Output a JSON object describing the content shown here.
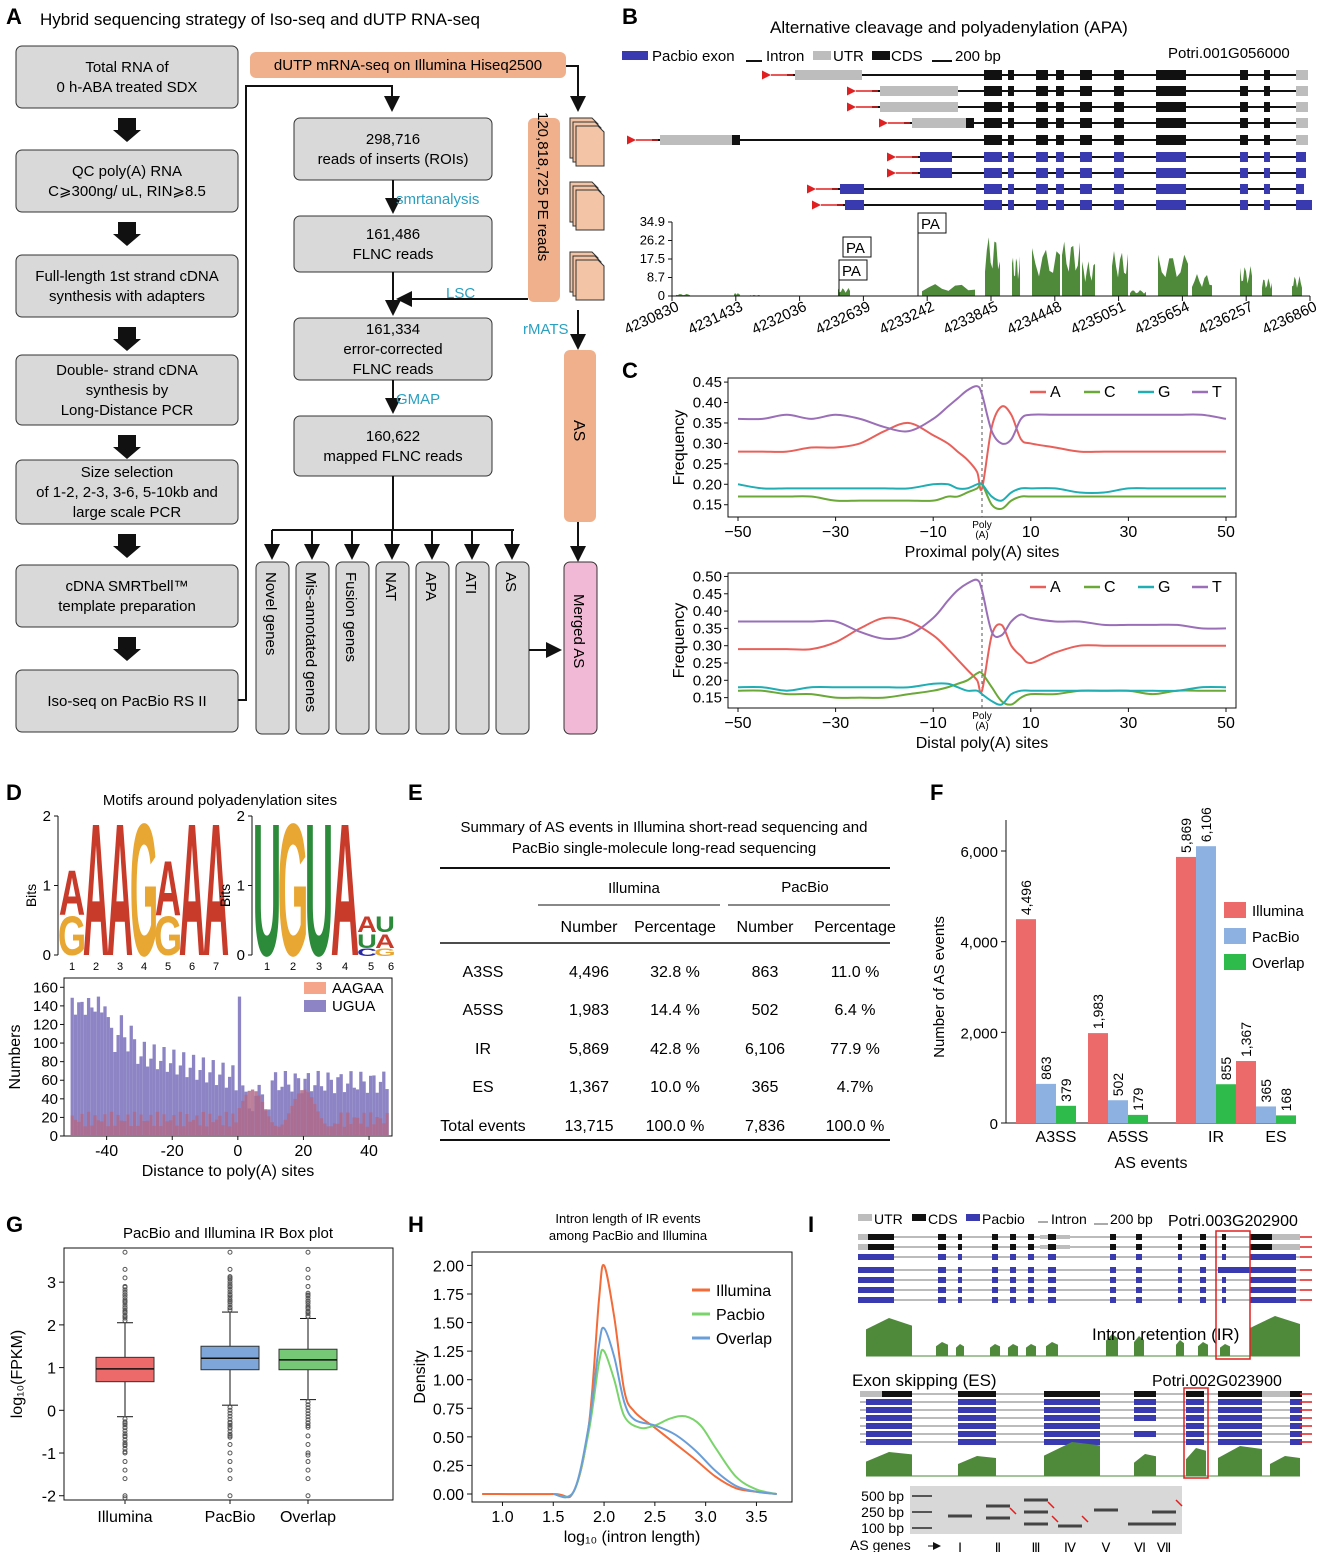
{
  "panels": {
    "A": "A",
    "B": "B",
    "C": "C",
    "D": "D",
    "E": "E",
    "F": "F",
    "G": "G",
    "H": "H",
    "I": "I"
  },
  "A": {
    "title": "Hybrid sequencing strategy of Iso-seq and dUTP RNA-seq",
    "left_steps": [
      [
        "Total RNA of",
        "0 h-ABA treated SDX"
      ],
      [
        "QC poly(A) RNA",
        "C⩾300ng/ uL,  RIN⩾8.5"
      ],
      [
        "Full-length 1st strand cDNA",
        "synthesis with adapters"
      ],
      [
        "Double- strand cDNA",
        "synthesis by",
        "Long-Distance PCR"
      ],
      [
        "Size selection",
        "of 1-2, 2-3, 3-6, 5-10kb and",
        "large scale PCR"
      ],
      [
        "cDNA SMRTbell™",
        "template preparation"
      ],
      [
        "Iso-seq on PacBio RS II"
      ]
    ],
    "dutp": "dUTP mRNA-seq on Illumina Hiseq2500",
    "mid_steps": [
      [
        "298,716",
        "reads of inserts (ROIs)"
      ],
      [
        "161,486",
        "FLNC reads"
      ],
      [
        "161,334",
        "error-corrected",
        "FLNC reads"
      ],
      [
        "160,622",
        "mapped FLNC reads"
      ]
    ],
    "tools": [
      "smrtanalysis",
      "LSC",
      "GMAP",
      "rMATS"
    ],
    "pe_reads": "120,818,725 PE reads",
    "as": "AS",
    "outputs": [
      "Novel genes",
      "Mis-annotated genes",
      "Fusion genes",
      "NAT",
      "APA",
      "ATI",
      "AS"
    ],
    "merged": "Merged AS"
  },
  "B": {
    "title": "Alternative cleavage and polyadenylation (APA)",
    "legend": [
      "Pacbio exon",
      "Intron",
      "UTR",
      "CDS",
      "200 bp"
    ],
    "gene": "Potri.001G056000",
    "yticks": [
      "34.9",
      "26.2",
      "17.5",
      "8.7",
      "0"
    ],
    "xticks": [
      "4230830",
      "4231433",
      "4232036",
      "4232639",
      "4233242",
      "4233845",
      "4234448",
      "4235051",
      "4235654",
      "4236257",
      "4236860"
    ],
    "pa": [
      "PA",
      "PA",
      "PA"
    ]
  },
  "C": {
    "ylabel": "Frequency",
    "xticks": [
      "−50",
      "−30",
      "−10",
      "10",
      "30",
      "50"
    ],
    "poly": [
      "Poly",
      "(A)"
    ],
    "top": {
      "xlabel": "Proximal poly(A) sites",
      "yticks": [
        "0.45",
        "0.40",
        "0.35",
        "0.30",
        "0.25",
        "0.20",
        "0.15"
      ]
    },
    "bottom": {
      "xlabel": "Distal poly(A) sites",
      "yticks": [
        "0.50",
        "0.45",
        "0.40",
        "0.35",
        "0.30",
        "0.25",
        "0.20",
        "0.15"
      ]
    },
    "legend": [
      "A",
      "C",
      "G",
      "T"
    ]
  },
  "D": {
    "title": "Motifs around polyadenylation sites",
    "bits": "Bits",
    "yt": [
      "2",
      "1",
      "0"
    ],
    "pos1": [
      "1",
      "2",
      "3",
      "4",
      "5",
      "6",
      "7"
    ],
    "pos2": [
      "1",
      "2",
      "3",
      "4",
      "5",
      "6"
    ],
    "ylabel": "Numbers",
    "xlabel": "Distance to poly(A) sites",
    "yticks": [
      "160",
      "140",
      "120",
      "100",
      "80",
      "60",
      "40",
      "20",
      "0"
    ],
    "xticks": [
      "-40",
      "-20",
      "0",
      "20",
      "40"
    ],
    "legend": [
      "AAGAA",
      "UGUA"
    ]
  },
  "E": {
    "title": [
      "Summary of AS events in Illumina short-read sequencing and",
      "PacBio single-molecule long-read sequencing"
    ],
    "groups": [
      "Illumina",
      "PacBio"
    ],
    "cols": [
      "Number",
      "Percentage",
      "Number",
      "Percentage"
    ],
    "rows": [
      [
        "A3SS",
        "4,496",
        "32.8 %",
        "863",
        "11.0 %"
      ],
      [
        "A5SS",
        "1,983",
        "14.4 %",
        "502",
        "6.4 %"
      ],
      [
        "IR",
        "5,869",
        "42.8 %",
        "6,106",
        "77.9 %"
      ],
      [
        "ES",
        "1,367",
        "10.0 %",
        "365",
        "4.7%"
      ],
      [
        "Total events",
        "13,715",
        "100.0 %",
        "7,836",
        "100.0 %"
      ]
    ]
  },
  "F": {
    "ylabel": "Number of AS events",
    "xlabel": "AS events",
    "yticks": [
      "6,000",
      "4,000",
      "2,000",
      "0"
    ],
    "legend": [
      "Illumina",
      "PacBio",
      "Overlap"
    ]
  },
  "G": {
    "title": "PacBio and Illumina IR Box plot",
    "ylabel": "log₁₀(FPKM)",
    "yticks": [
      "3",
      "2",
      "1",
      "0",
      "-1",
      "-2"
    ],
    "cats": [
      "Illumina",
      "PacBio",
      "Overlap"
    ]
  },
  "H": {
    "title": [
      "Intron length of IR events",
      "among PacBio and Illumina"
    ],
    "ylabel": "Density",
    "xlabel": "log₁₀ (intron length)",
    "yticks": [
      "2.00",
      "1.75",
      "1.50",
      "1.25",
      "1.00",
      "0.75",
      "0.50",
      "0.25",
      "0.00"
    ],
    "xticks": [
      "1.0",
      "1.5",
      "2.0",
      "2.5",
      "3.0",
      "3.5"
    ],
    "legend": [
      "Illumina",
      "Pacbio",
      "Overlap"
    ]
  },
  "I": {
    "legend": [
      "UTR",
      "CDS",
      "Pacbio",
      "Intron",
      "200 bp"
    ],
    "gene1": "Potri.003G202900",
    "ir": "Intron retention (IR)",
    "es": "Exon skipping (ES)",
    "gene2": "Potri.002G023900",
    "ladder": [
      "500 bp",
      "250 bp",
      "100 bp"
    ],
    "genes_label": "AS genes",
    "lanes": [
      "Ⅰ",
      "Ⅱ",
      "Ⅲ",
      "Ⅳ",
      "Ⅴ",
      "Ⅵ",
      "Ⅶ"
    ]
  },
  "chart_data": [
    {
      "panel": "F",
      "type": "bar",
      "categories": [
        "A3SS",
        "A5SS",
        "IR",
        "ES"
      ],
      "series": [
        {
          "name": "Illumina",
          "values": [
            4496,
            1983,
            5869,
            1367
          ],
          "labels": [
            "4,496",
            "1,983",
            "5,869",
            "1,367"
          ]
        },
        {
          "name": "PacBio",
          "values": [
            863,
            502,
            6106,
            365
          ],
          "labels": [
            "863",
            "502",
            "6,106",
            "365"
          ]
        },
        {
          "name": "Overlap",
          "values": [
            379,
            179,
            855,
            168
          ],
          "labels": [
            "379",
            "179",
            "855",
            "168"
          ]
        }
      ],
      "ylim": [
        0,
        7000
      ],
      "colors": [
        "#ec6b6a",
        "#8db1e0",
        "#2ebb4c"
      ]
    },
    {
      "panel": "G",
      "type": "box",
      "categories": [
        "Illumina",
        "PacBio",
        "Overlap"
      ],
      "series": [
        {
          "name": "Illumina",
          "q1": 0.67,
          "median": 0.97,
          "q3": 1.24,
          "whisker_low": -0.15,
          "whisker_high": 2.05
        },
        {
          "name": "PacBio",
          "q1": 0.95,
          "median": 1.22,
          "q3": 1.5,
          "whisker_low": 0.12,
          "whisker_high": 2.3
        },
        {
          "name": "Overlap",
          "q1": 0.95,
          "median": 1.18,
          "q3": 1.43,
          "whisker_low": 0.25,
          "whisker_high": 2.15
        }
      ],
      "ylim": [
        -2.1,
        3.8
      ],
      "colors": [
        "#ec6b6a",
        "#7fa6d9",
        "#76c776"
      ]
    },
    {
      "panel": "H",
      "type": "line",
      "xlim": [
        0.7,
        3.85
      ],
      "ylim": [
        0,
        2.1
      ],
      "series": [
        {
          "name": "Illumina",
          "x": [
            0.8,
            1.5,
            1.7,
            1.85,
            1.95,
            2.0,
            2.1,
            2.2,
            2.3,
            2.5,
            2.7,
            2.9,
            3.1,
            3.3,
            3.5,
            3.7
          ],
          "y": [
            0,
            0,
            0.02,
            0.6,
            1.7,
            2.0,
            1.55,
            0.9,
            0.72,
            0.58,
            0.44,
            0.3,
            0.15,
            0.05,
            0.02,
            0
          ]
        },
        {
          "name": "Pacbio",
          "x": [
            1.5,
            1.7,
            1.85,
            1.95,
            2.0,
            2.1,
            2.2,
            2.35,
            2.5,
            2.65,
            2.8,
            2.95,
            3.1,
            3.3,
            3.5,
            3.7
          ],
          "y": [
            0,
            0.02,
            0.55,
            1.15,
            1.25,
            1.0,
            0.68,
            0.58,
            0.6,
            0.66,
            0.68,
            0.6,
            0.4,
            0.15,
            0.04,
            0
          ]
        },
        {
          "name": "Overlap",
          "x": [
            1.5,
            1.7,
            1.85,
            1.95,
            2.0,
            2.1,
            2.2,
            2.3,
            2.5,
            2.7,
            2.9,
            3.1,
            3.3,
            3.5,
            3.7
          ],
          "y": [
            0,
            0.02,
            0.6,
            1.3,
            1.45,
            1.2,
            0.8,
            0.65,
            0.6,
            0.52,
            0.38,
            0.2,
            0.07,
            0.02,
            0
          ]
        }
      ],
      "colors": [
        "#f26b38",
        "#7ad46b",
        "#6a9ed8"
      ]
    },
    {
      "panel": "C-top",
      "type": "line",
      "x": [
        -50,
        -45,
        -40,
        -35,
        -30,
        -25,
        -20,
        -15,
        -10,
        -7,
        -5,
        -3,
        -1,
        0,
        2,
        4,
        6,
        8,
        10,
        15,
        20,
        25,
        30,
        35,
        40,
        45,
        50
      ],
      "series": [
        {
          "name": "A",
          "values": [
            0.28,
            0.28,
            0.28,
            0.29,
            0.29,
            0.3,
            0.33,
            0.35,
            0.32,
            0.3,
            0.28,
            0.26,
            0.23,
            0.19,
            0.34,
            0.39,
            0.37,
            0.31,
            0.3,
            0.29,
            0.28,
            0.28,
            0.28,
            0.28,
            0.28,
            0.28,
            0.28
          ]
        },
        {
          "name": "C",
          "values": [
            0.17,
            0.17,
            0.17,
            0.17,
            0.16,
            0.16,
            0.16,
            0.16,
            0.16,
            0.17,
            0.17,
            0.18,
            0.19,
            0.2,
            0.15,
            0.14,
            0.16,
            0.17,
            0.17,
            0.17,
            0.17,
            0.17,
            0.17,
            0.17,
            0.17,
            0.17,
            0.17
          ]
        },
        {
          "name": "G",
          "values": [
            0.2,
            0.19,
            0.19,
            0.19,
            0.19,
            0.19,
            0.19,
            0.19,
            0.2,
            0.2,
            0.19,
            0.19,
            0.2,
            0.2,
            0.17,
            0.16,
            0.18,
            0.19,
            0.19,
            0.19,
            0.18,
            0.18,
            0.19,
            0.19,
            0.19,
            0.19,
            0.19
          ]
        },
        {
          "name": "T",
          "values": [
            0.36,
            0.36,
            0.37,
            0.36,
            0.37,
            0.36,
            0.34,
            0.33,
            0.36,
            0.39,
            0.41,
            0.43,
            0.44,
            0.42,
            0.33,
            0.3,
            0.31,
            0.36,
            0.37,
            0.37,
            0.37,
            0.37,
            0.37,
            0.37,
            0.37,
            0.37,
            0.36
          ]
        }
      ],
      "ylim": [
        0.12,
        0.46
      ],
      "colors": [
        "#e8605a",
        "#6aa837",
        "#20aeb4",
        "#9a6fb8"
      ]
    },
    {
      "panel": "C-bottom",
      "type": "line",
      "x": [
        -50,
        -45,
        -40,
        -35,
        -30,
        -25,
        -20,
        -15,
        -10,
        -7,
        -5,
        -3,
        -1,
        0,
        2,
        4,
        6,
        8,
        10,
        15,
        20,
        25,
        30,
        35,
        40,
        45,
        50
      ],
      "series": [
        {
          "name": "A",
          "values": [
            0.29,
            0.29,
            0.29,
            0.29,
            0.31,
            0.35,
            0.38,
            0.37,
            0.33,
            0.29,
            0.26,
            0.23,
            0.2,
            0.17,
            0.33,
            0.36,
            0.3,
            0.27,
            0.25,
            0.28,
            0.3,
            0.3,
            0.3,
            0.3,
            0.3,
            0.3,
            0.3
          ]
        },
        {
          "name": "C",
          "values": [
            0.17,
            0.17,
            0.16,
            0.16,
            0.15,
            0.15,
            0.15,
            0.16,
            0.17,
            0.18,
            0.19,
            0.2,
            0.22,
            0.22,
            0.18,
            0.14,
            0.13,
            0.15,
            0.16,
            0.16,
            0.17,
            0.17,
            0.17,
            0.16,
            0.17,
            0.17,
            0.17
          ]
        },
        {
          "name": "G",
          "values": [
            0.18,
            0.18,
            0.17,
            0.18,
            0.18,
            0.18,
            0.18,
            0.18,
            0.19,
            0.19,
            0.18,
            0.17,
            0.17,
            0.16,
            0.14,
            0.13,
            0.16,
            0.17,
            0.17,
            0.17,
            0.17,
            0.17,
            0.17,
            0.17,
            0.17,
            0.18,
            0.18
          ]
        },
        {
          "name": "T",
          "values": [
            0.37,
            0.37,
            0.37,
            0.37,
            0.37,
            0.34,
            0.32,
            0.33,
            0.38,
            0.43,
            0.46,
            0.48,
            0.49,
            0.46,
            0.34,
            0.33,
            0.37,
            0.39,
            0.38,
            0.37,
            0.37,
            0.36,
            0.36,
            0.36,
            0.36,
            0.35,
            0.35
          ]
        }
      ],
      "ylim": [
        0.12,
        0.51
      ],
      "colors": [
        "#e8605a",
        "#6aa837",
        "#20aeb4",
        "#9a6fb8"
      ]
    }
  ]
}
